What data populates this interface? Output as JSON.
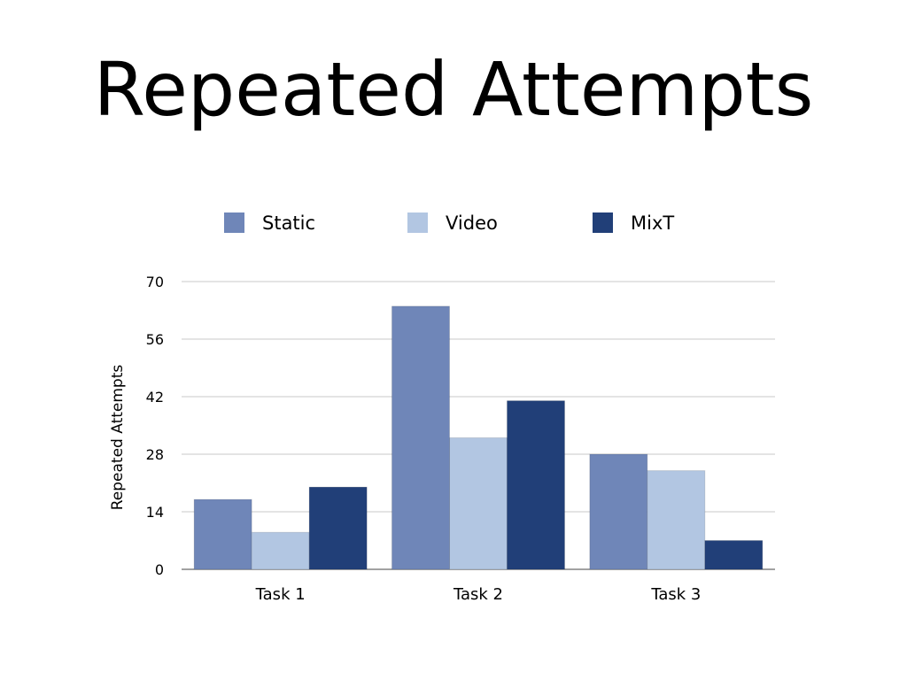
{
  "slide": {
    "title": "Repeated Attempts"
  },
  "chart_data": {
    "type": "bar",
    "title": "",
    "ylabel": "Repeated Attempts",
    "xlabel": "",
    "categories": [
      "Task 1",
      "Task 2",
      "Task 3"
    ],
    "series": [
      {
        "name": "Static",
        "values": [
          17,
          64,
          28
        ],
        "color": "#6f86b8"
      },
      {
        "name": "Video",
        "values": [
          9,
          32,
          24
        ],
        "color": "#b2c6e2"
      },
      {
        "name": "MixT",
        "values": [
          20,
          41,
          7
        ],
        "color": "#213f78"
      }
    ],
    "ylim": [
      0,
      70
    ],
    "yticks": [
      "0",
      "14",
      "28",
      "42",
      "56",
      "70"
    ],
    "grid": true,
    "legend_position": "top"
  }
}
